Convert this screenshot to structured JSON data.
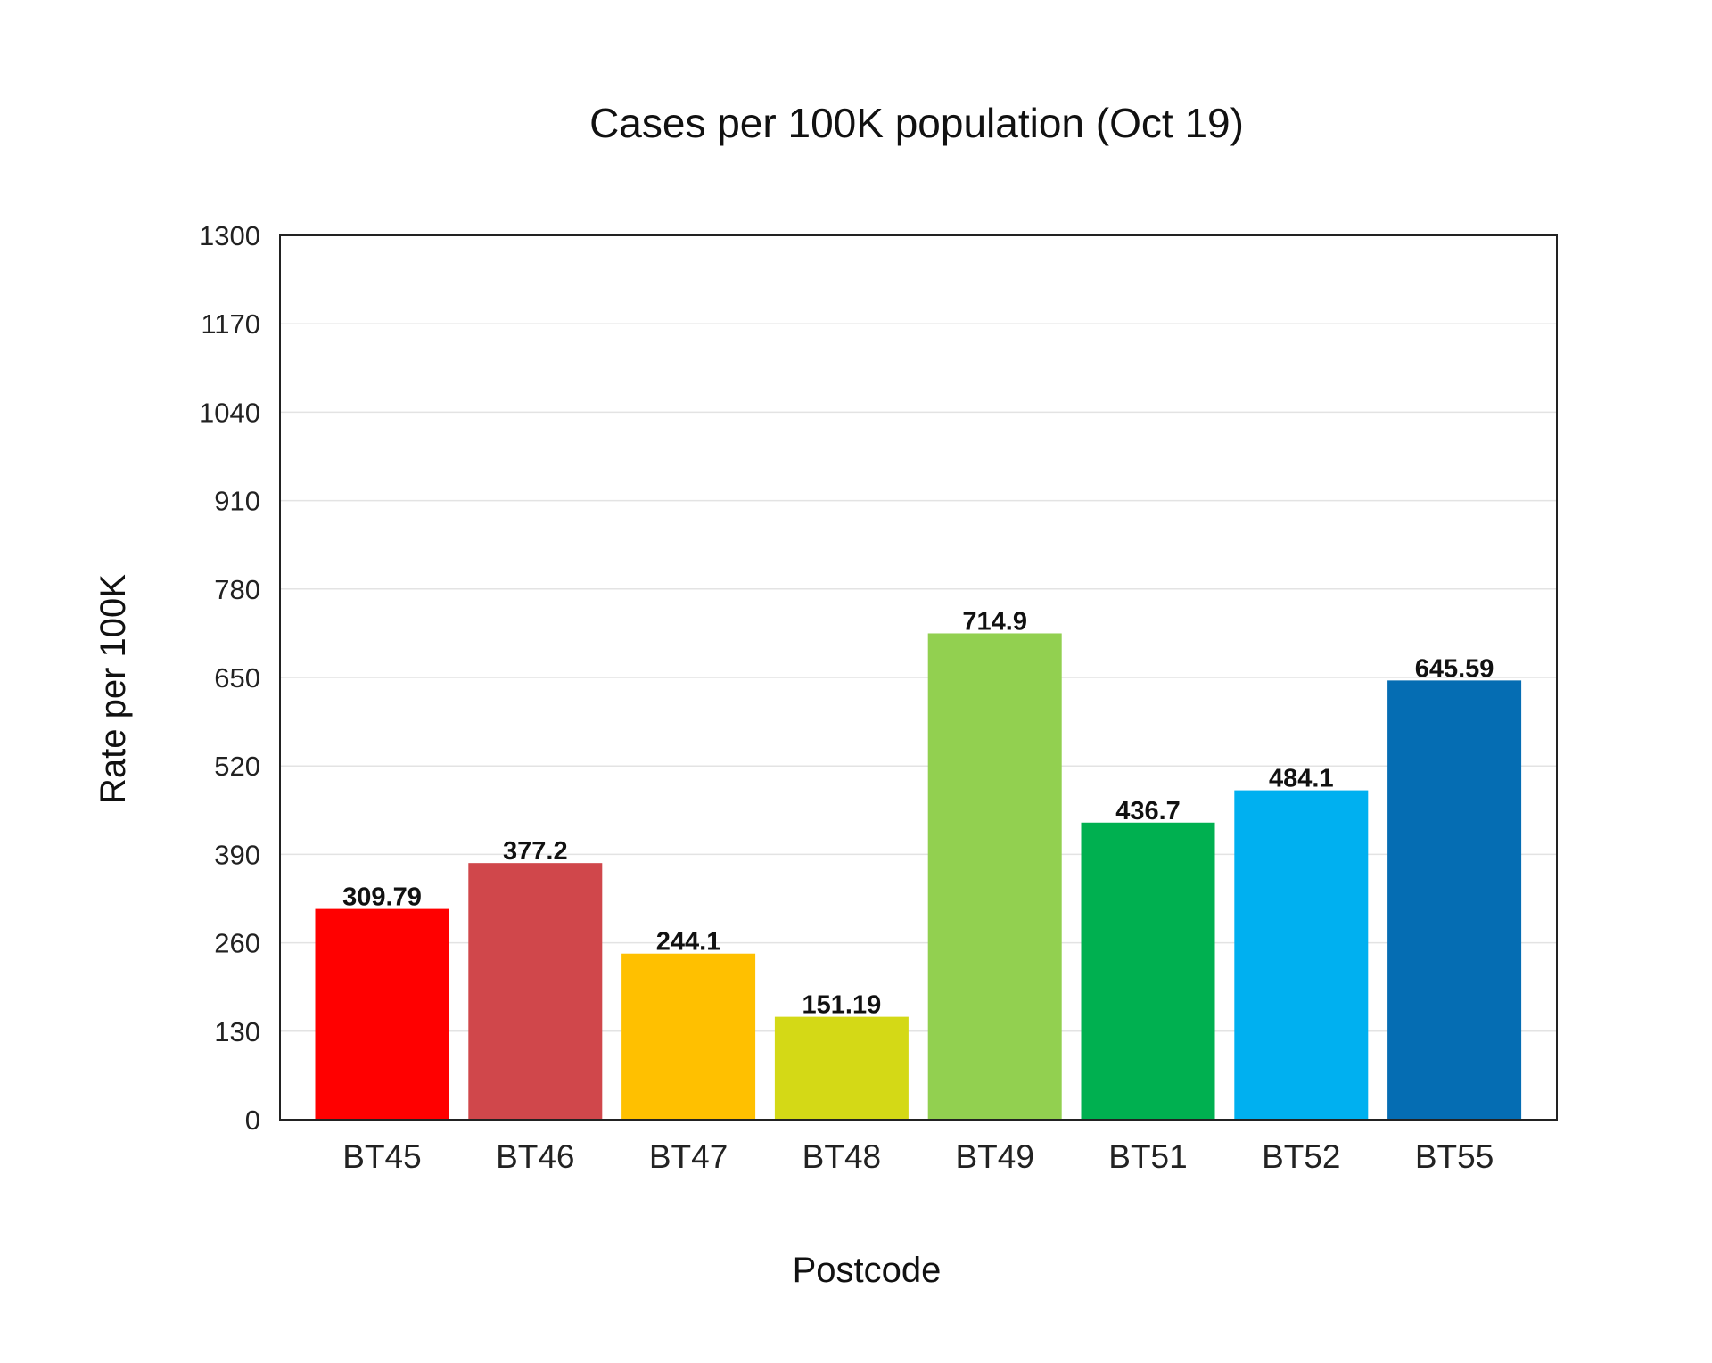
{
  "chart_data": {
    "type": "bar",
    "title": "Cases per 100K population (Oct 19)",
    "xlabel": "Postcode",
    "ylabel": "Rate per 100K",
    "ylim": [
      0,
      1300
    ],
    "yticks": [
      0,
      130,
      260,
      390,
      520,
      650,
      780,
      910,
      1040,
      1170,
      1300
    ],
    "categories": [
      "BT45",
      "BT46",
      "BT47",
      "BT48",
      "BT49",
      "BT51",
      "BT52",
      "BT55"
    ],
    "values": [
      309.79,
      377.2,
      244.1,
      151.19,
      714.9,
      436.7,
      484.1,
      645.59
    ],
    "value_labels": [
      "309.79",
      "377.2",
      "244.1",
      "151.19",
      "714.9",
      "436.7",
      "484.1",
      "645.59"
    ],
    "colors": [
      "#ff0000",
      "#d0474b",
      "#ffc000",
      "#d4d916",
      "#92d050",
      "#00b050",
      "#00b0f0",
      "#056db3"
    ],
    "grid": true,
    "legend": "none"
  }
}
